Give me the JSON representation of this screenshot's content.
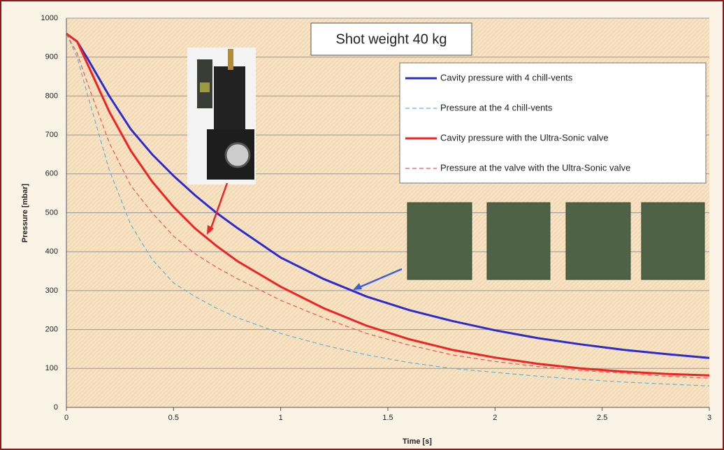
{
  "chart_data": {
    "type": "line",
    "title": "Shot weight 40 kg",
    "x_label": "Time [s]",
    "y_label": "Pressure [mbar]",
    "x": [
      0,
      0.05,
      0.1,
      0.2,
      0.3,
      0.4,
      0.5,
      0.6,
      0.7,
      0.8,
      1.0,
      1.2,
      1.4,
      1.6,
      1.8,
      2.0,
      2.2,
      2.4,
      2.6,
      2.8,
      3.0
    ],
    "series": [
      {
        "name": "Cavity pressure with 4 chill-vents",
        "color": "#2b2bcf",
        "dashed": false,
        "values": [
          960,
          940,
          895,
          800,
          715,
          650,
          595,
          545,
          500,
          460,
          385,
          330,
          285,
          250,
          222,
          198,
          178,
          162,
          148,
          137,
          127
        ]
      },
      {
        "name": "Pressure at the 4 chill-vents",
        "color": "#5fb4d6",
        "dashed": true,
        "values": [
          960,
          900,
          800,
          610,
          470,
          380,
          320,
          285,
          255,
          230,
          190,
          160,
          135,
          115,
          100,
          90,
          80,
          72,
          65,
          60,
          55
        ]
      },
      {
        "name": "Cavity pressure with the Ultra-Sonic valve",
        "color": "#f02222",
        "dashed": false,
        "values": [
          960,
          940,
          880,
          760,
          660,
          580,
          515,
          460,
          415,
          375,
          310,
          255,
          210,
          175,
          148,
          128,
          112,
          100,
          92,
          86,
          82
        ]
      },
      {
        "name": "Pressure at the valve with the Ultra-Sonic valve",
        "color": "#f05555",
        "dashed": true,
        "values": [
          960,
          910,
          830,
          680,
          570,
          500,
          440,
          395,
          360,
          330,
          275,
          230,
          190,
          160,
          135,
          118,
          105,
          95,
          88,
          80,
          75
        ]
      }
    ],
    "xlim": [
      0,
      3
    ],
    "xticks": [
      0,
      0.5,
      1,
      1.5,
      2,
      2.5,
      3
    ],
    "ylim": [
      0,
      1000
    ],
    "yticks": [
      0,
      100,
      200,
      300,
      400,
      500,
      600,
      700,
      800,
      900,
      1000
    ],
    "grid": true,
    "legend": "upper right"
  }
}
